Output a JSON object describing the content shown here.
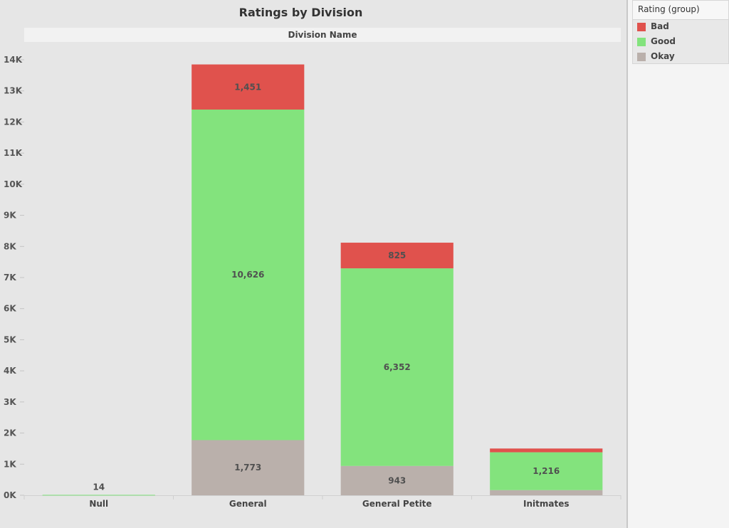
{
  "chart_data": {
    "type": "bar",
    "stacked": true,
    "title": "Ratings by Division",
    "column_header": "Division Name",
    "categories": [
      "Null",
      "General",
      "General Petite",
      "Initmates"
    ],
    "series": [
      {
        "name": "Okay",
        "color": "#bab0ab",
        "values": [
          0,
          1773,
          943,
          166
        ]
      },
      {
        "name": "Good",
        "color": "#83e37d",
        "values": [
          14,
          10626,
          6352,
          1216
        ]
      },
      {
        "name": "Bad",
        "color": "#e0524d",
        "values": [
          0,
          1451,
          825,
          121
        ]
      }
    ],
    "data_labels": [
      {
        "category": "Null",
        "series": "Good",
        "text": "14"
      },
      {
        "category": "General",
        "series": "Okay",
        "text": "1,773"
      },
      {
        "category": "General",
        "series": "Good",
        "text": "10,626"
      },
      {
        "category": "General",
        "series": "Bad",
        "text": "1,451"
      },
      {
        "category": "General Petite",
        "series": "Okay",
        "text": "943"
      },
      {
        "category": "General Petite",
        "series": "Good",
        "text": "6,352"
      },
      {
        "category": "General Petite",
        "series": "Bad",
        "text": "825"
      },
      {
        "category": "Initmates",
        "series": "Good",
        "text": "1,216"
      }
    ],
    "yticks": [
      0,
      1000,
      2000,
      3000,
      4000,
      5000,
      6000,
      7000,
      8000,
      9000,
      10000,
      11000,
      12000,
      13000,
      14000
    ],
    "ytick_labels": [
      "0K",
      "1K",
      "2K",
      "3K",
      "4K",
      "5K",
      "6K",
      "7K",
      "8K",
      "9K",
      "10K",
      "11K",
      "12K",
      "13K",
      "14K"
    ],
    "ylim": [
      0,
      14000
    ],
    "grid": false,
    "legend_position": "right"
  },
  "legend": {
    "title": "Rating (group)",
    "items": [
      {
        "name": "Bad",
        "color": "#e0524d"
      },
      {
        "name": "Good",
        "color": "#83e37d"
      },
      {
        "name": "Okay",
        "color": "#bab0ab"
      }
    ]
  }
}
